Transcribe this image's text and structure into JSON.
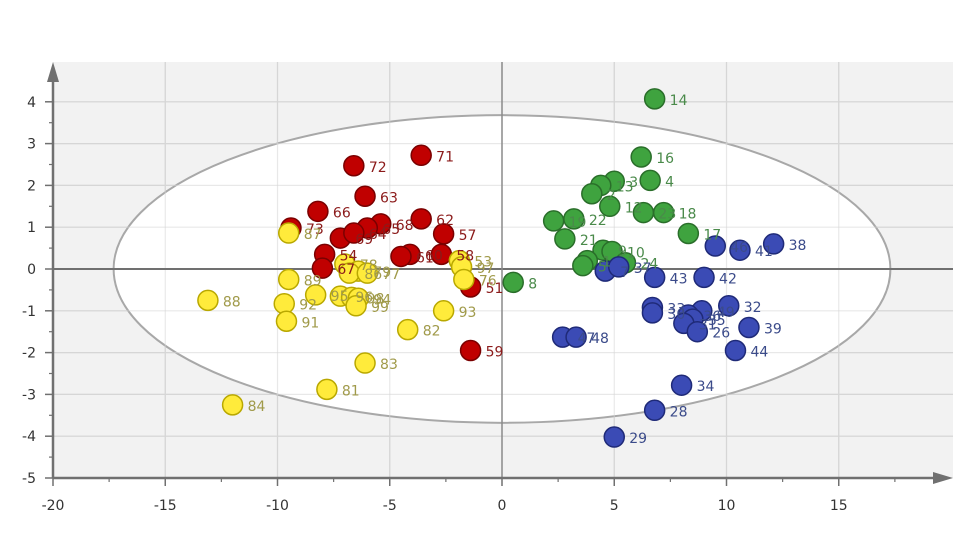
{
  "chart_data": {
    "type": "scatter",
    "title": "",
    "xlabel": "",
    "ylabel": "",
    "xlim": [
      -20,
      19
    ],
    "ylim": [
      -5,
      5
    ],
    "x_ticks": [
      -20,
      -15,
      -10,
      -5,
      0,
      5,
      10,
      15
    ],
    "y_ticks": [
      4,
      3,
      2,
      1,
      0,
      -1,
      -2,
      -3,
      -4,
      -5
    ],
    "grid": true,
    "legend": null,
    "confidence_ellipse": {
      "cx": 0,
      "cy": 0,
      "rx": 17.3,
      "ry": 3.68
    },
    "series": [
      {
        "name": "red",
        "color": "#c00000",
        "label_color": "#8b1a1a",
        "points": [
          {
            "label": "71",
            "x": -3.6,
            "y": 2.72
          },
          {
            "label": "72",
            "x": -6.6,
            "y": 2.47
          },
          {
            "label": "63",
            "x": -6.1,
            "y": 1.74
          },
          {
            "label": "66",
            "x": -8.2,
            "y": 1.38
          },
          {
            "label": "62",
            "x": -3.6,
            "y": 1.2
          },
          {
            "label": "73",
            "x": -9.4,
            "y": 0.98
          },
          {
            "label": "68",
            "x": -5.4,
            "y": 1.08
          },
          {
            "label": "65",
            "x": -6.0,
            "y": 0.98
          },
          {
            "label": "57",
            "x": -2.6,
            "y": 0.84
          },
          {
            "label": "69",
            "x": -7.2,
            "y": 0.74
          },
          {
            "label": "64",
            "x": -6.6,
            "y": 0.86
          },
          {
            "label": "60",
            "x": -4.1,
            "y": 0.35
          },
          {
            "label": "58",
            "x": -2.7,
            "y": 0.35
          },
          {
            "label": "61",
            "x": -4.5,
            "y": 0.3
          },
          {
            "label": "54",
            "x": -7.9,
            "y": 0.35
          },
          {
            "label": "67",
            "x": -8.0,
            "y": 0.02
          },
          {
            "label": "51",
            "x": -1.4,
            "y": -0.43
          },
          {
            "label": "59",
            "x": -1.4,
            "y": -1.95
          }
        ]
      },
      {
        "name": "yellow",
        "color": "#ffeb3b",
        "label_color": "#a09a4a",
        "points": [
          {
            "label": "87",
            "x": -9.5,
            "y": 0.86
          },
          {
            "label": "53",
            "x": -1.9,
            "y": 0.2
          },
          {
            "label": "97",
            "x": -1.8,
            "y": 0.05
          },
          {
            "label": "76",
            "x": -1.7,
            "y": -0.25
          },
          {
            "label": "78",
            "x": -7.0,
            "y": 0.12
          },
          {
            "label": "79",
            "x": -6.4,
            "y": -0.05
          },
          {
            "label": "86",
            "x": -6.8,
            "y": -0.1
          },
          {
            "label": "77",
            "x": -6.0,
            "y": -0.1
          },
          {
            "label": "89",
            "x": -9.5,
            "y": -0.25
          },
          {
            "label": "96",
            "x": -7.2,
            "y": -0.65
          },
          {
            "label": "98",
            "x": -6.7,
            "y": -0.68
          },
          {
            "label": "94",
            "x": -6.4,
            "y": -0.7
          },
          {
            "label": "95",
            "x": -8.3,
            "y": -0.62
          },
          {
            "label": "99",
            "x": -6.5,
            "y": -0.88
          },
          {
            "label": "92",
            "x": -9.7,
            "y": -0.83
          },
          {
            "label": "91",
            "x": -9.6,
            "y": -1.25
          },
          {
            "label": "88",
            "x": -13.1,
            "y": -0.75
          },
          {
            "label": "93",
            "x": -2.6,
            "y": -1.0
          },
          {
            "label": "82",
            "x": -4.2,
            "y": -1.45
          },
          {
            "label": "83",
            "x": -6.1,
            "y": -2.25
          },
          {
            "label": "81",
            "x": -7.8,
            "y": -2.88
          },
          {
            "label": "84",
            "x": -12.0,
            "y": -3.25
          }
        ]
      },
      {
        "name": "green",
        "color": "#3fa33f",
        "label_color": "#4a8a4a",
        "points": [
          {
            "label": "14",
            "x": 6.8,
            "y": 4.07
          },
          {
            "label": "16",
            "x": 6.2,
            "y": 2.68
          },
          {
            "label": "4",
            "x": 6.6,
            "y": 2.12
          },
          {
            "label": "3",
            "x": 5.0,
            "y": 2.1
          },
          {
            "label": "13",
            "x": 4.4,
            "y": 2.0
          },
          {
            "label": "2",
            "x": 4.0,
            "y": 1.8
          },
          {
            "label": "12",
            "x": 4.8,
            "y": 1.5
          },
          {
            "label": "23",
            "x": 6.3,
            "y": 1.35
          },
          {
            "label": "18",
            "x": 7.2,
            "y": 1.35
          },
          {
            "label": "22",
            "x": 3.2,
            "y": 1.2
          },
          {
            "label": "19",
            "x": 2.3,
            "y": 1.15
          },
          {
            "label": "21",
            "x": 2.8,
            "y": 0.72
          },
          {
            "label": "17",
            "x": 8.3,
            "y": 0.85
          },
          {
            "label": "9",
            "x": 4.5,
            "y": 0.45
          },
          {
            "label": "10",
            "x": 4.9,
            "y": 0.42
          },
          {
            "label": "24",
            "x": 5.5,
            "y": 0.15
          },
          {
            "label": "1",
            "x": 3.8,
            "y": 0.2
          },
          {
            "label": "5",
            "x": 3.6,
            "y": 0.08
          },
          {
            "label": "8",
            "x": 0.5,
            "y": -0.32
          }
        ]
      },
      {
        "name": "blue",
        "color": "#3b4bb5",
        "label_color": "#3b4b8a",
        "points": [
          {
            "label": "38",
            "x": 12.1,
            "y": 0.6
          },
          {
            "label": "41",
            "x": 10.6,
            "y": 0.45
          },
          {
            "label": "46",
            "x": 9.5,
            "y": 0.55
          },
          {
            "label": "7",
            "x": 4.6,
            "y": -0.05
          },
          {
            "label": "37",
            "x": 5.2,
            "y": 0.05
          },
          {
            "label": "43",
            "x": 6.8,
            "y": -0.2
          },
          {
            "label": "42",
            "x": 9.0,
            "y": -0.2
          },
          {
            "label": "33",
            "x": 6.7,
            "y": -0.92
          },
          {
            "label": "30",
            "x": 6.7,
            "y": -1.05
          },
          {
            "label": "32",
            "x": 10.1,
            "y": -0.88
          },
          {
            "label": "49",
            "x": 8.9,
            "y": -1.0
          },
          {
            "label": "36",
            "x": 8.3,
            "y": -1.1
          },
          {
            "label": "35",
            "x": 8.5,
            "y": -1.2
          },
          {
            "label": "31",
            "x": 8.1,
            "y": -1.3
          },
          {
            "label": "26",
            "x": 8.7,
            "y": -1.5
          },
          {
            "label": "39",
            "x": 11.0,
            "y": -1.4
          },
          {
            "label": "44",
            "x": 10.4,
            "y": -1.95
          },
          {
            "label": "47",
            "x": 2.7,
            "y": -1.63
          },
          {
            "label": "48",
            "x": 3.3,
            "y": -1.63
          },
          {
            "label": "34",
            "x": 8.0,
            "y": -2.78
          },
          {
            "label": "28",
            "x": 6.8,
            "y": -3.38
          },
          {
            "label": "29",
            "x": 5.0,
            "y": -4.02
          }
        ]
      }
    ]
  },
  "axes": {
    "x_tick_labels": [
      "-20",
      "-15",
      "-10",
      "-5",
      "0",
      "5",
      "10",
      "15"
    ],
    "y_tick_labels": [
      "4",
      "3",
      "2",
      "1",
      "0",
      "-1",
      "-2",
      "-3",
      "-4",
      "-5"
    ]
  }
}
